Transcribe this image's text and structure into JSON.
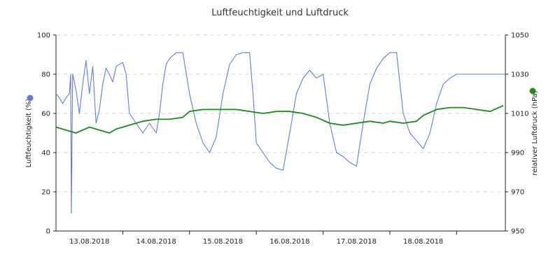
{
  "chart_data": {
    "type": "line",
    "title": "Luftfeuchtigkeit und Luftdruck",
    "x_tick_labels": [
      "13.08.2018",
      "14.08.2018",
      "15.08.2018",
      "16.08.2018",
      "17.08.2018",
      "18.08.2018"
    ],
    "x_tick_days": [
      13,
      14,
      15,
      16,
      17,
      18
    ],
    "xlim_days": [
      12.5,
      19.23
    ],
    "y_left": {
      "label": "Luftfeuchtigkeit (%)",
      "ylim": [
        0,
        100
      ],
      "ticks": [
        "0",
        "20",
        "40",
        "60",
        "80",
        "100"
      ]
    },
    "y_right": {
      "label": "relativer Luftdruck (hPa)",
      "ylim": [
        950,
        1050
      ],
      "ticks": [
        "950",
        "970",
        "990",
        "1010",
        "1030",
        "1050"
      ]
    },
    "grid": true,
    "series": [
      {
        "axis": "left",
        "color": "#5b7fdb",
        "x_days": [
          12.5,
          12.55,
          12.6,
          12.65,
          12.7,
          12.72,
          12.73,
          12.75,
          12.8,
          12.85,
          12.9,
          12.95,
          13.0,
          13.05,
          13.1,
          13.15,
          13.2,
          13.25,
          13.3,
          13.35,
          13.4,
          13.5,
          13.55,
          13.6,
          13.7,
          13.8,
          13.9,
          14.0,
          14.05,
          14.1,
          14.15,
          14.2,
          14.3,
          14.4,
          14.5,
          14.6,
          14.7,
          14.8,
          14.9,
          15.0,
          15.1,
          15.2,
          15.3,
          15.4,
          15.45,
          15.5,
          15.6,
          15.7,
          15.8,
          15.9,
          16.0,
          16.1,
          16.2,
          16.3,
          16.4,
          16.5,
          16.6,
          16.7,
          16.8,
          16.9,
          17.0,
          17.1,
          17.2,
          17.3,
          17.4,
          17.5,
          17.6,
          17.7,
          17.8,
          17.9,
          18.0,
          18.1,
          18.2,
          18.3,
          18.4,
          18.5,
          18.6,
          18.7,
          18.8,
          18.9,
          19.0,
          19.1,
          19.2,
          19.23
        ],
        "values": [
          70,
          68,
          65,
          68,
          70,
          80,
          9,
          80,
          72,
          60,
          75,
          87,
          70,
          84,
          55,
          62,
          75,
          83,
          80,
          76,
          84,
          86,
          80,
          60,
          55,
          50,
          55,
          50,
          60,
          75,
          85,
          88,
          91,
          91,
          70,
          55,
          45,
          40,
          48,
          70,
          85,
          90,
          91,
          91,
          70,
          45,
          40,
          35,
          32,
          31,
          50,
          70,
          78,
          82,
          78,
          80,
          55,
          40,
          38,
          35,
          33,
          55,
          75,
          83,
          88,
          91,
          91,
          60,
          50,
          46,
          42,
          50,
          65,
          75,
          78,
          80,
          80,
          80,
          80,
          80,
          80,
          80,
          80,
          80
        ]
      },
      {
        "axis": "right",
        "color": "#1a8c1a",
        "x_days": [
          12.5,
          12.7,
          12.8,
          13.0,
          13.1,
          13.3,
          13.4,
          13.6,
          13.8,
          14.0,
          14.2,
          14.4,
          14.5,
          14.7,
          14.9,
          15.0,
          15.2,
          15.4,
          15.6,
          15.8,
          16.0,
          16.2,
          16.4,
          16.6,
          16.8,
          17.0,
          17.2,
          17.4,
          17.5,
          17.7,
          17.9,
          18.0,
          18.2,
          18.4,
          18.6,
          18.8,
          19.0,
          19.2
        ],
        "values": [
          1003,
          1001,
          1000,
          1003,
          1002,
          1000,
          1002,
          1004,
          1006,
          1007,
          1007,
          1008,
          1011,
          1012,
          1012,
          1012,
          1012,
          1011,
          1010,
          1011,
          1011,
          1010,
          1008,
          1005,
          1004,
          1005,
          1006,
          1005,
          1006,
          1005,
          1006,
          1009,
          1012,
          1013,
          1013,
          1012,
          1011,
          1014
        ]
      }
    ],
    "legend": {
      "left_marker_color": "#5b7fdb",
      "right_marker_color": "#1a8c1a"
    }
  }
}
